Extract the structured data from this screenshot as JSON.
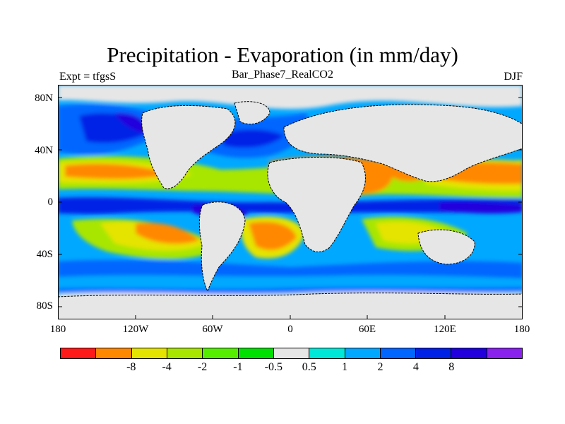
{
  "title": "Precipitation - Evaporation (in mm/day)",
  "subtitle": "Bar_Phase7_RealCO2",
  "left_string": "Expt = tfgsS",
  "right_string": "DJF",
  "lat_labels": [
    "80N",
    "40N",
    "0",
    "40S",
    "80S"
  ],
  "lon_labels": [
    "180",
    "120W",
    "60W",
    "0",
    "60E",
    "120E",
    "180"
  ],
  "colorbar": {
    "colors": [
      "#ff1a1a",
      "#ff8800",
      "#e4e400",
      "#a8e600",
      "#55ee00",
      "#00e000",
      "#e6e6e6",
      "#00e8d8",
      "#00a8ff",
      "#0066ff",
      "#0022e6",
      "#2200dd",
      "#8a22ee"
    ],
    "labels": [
      "-8",
      "-4",
      "-2",
      "-1",
      "-0.5",
      "0.5",
      "1",
      "2",
      "4",
      "8"
    ]
  },
  "chart_data": {
    "type": "heatmap",
    "title": "Precipitation - Evaporation (in mm/day)",
    "subtitle": "Bar_Phase7_RealCO2",
    "season": "DJF",
    "experiment": "tfgsS",
    "units": "mm/day",
    "xlim": [
      -180,
      180
    ],
    "ylim": [
      -90,
      90
    ],
    "contour_levels": [
      -8,
      -4,
      -2,
      -1,
      -0.5,
      0.5,
      1,
      2,
      4,
      8
    ]
  }
}
